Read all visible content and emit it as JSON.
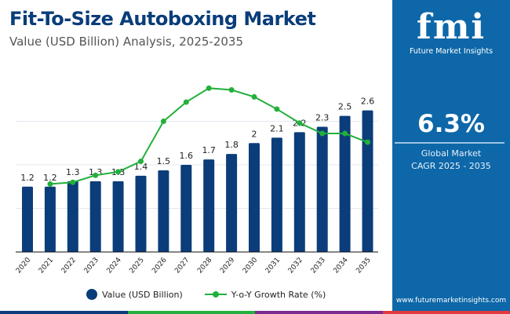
{
  "header": {
    "title": "Fit-To-Size Autoboxing Market",
    "subtitle": "Value (USD Billion) Analysis, 2025-2035"
  },
  "side": {
    "logo_text": "fmi",
    "brand": "Future Market Insights",
    "cagr": "6.3%",
    "label1": "Global Market",
    "label2": "CAGR 2025 - 2035",
    "url": "www.futuremarketinsights.com"
  },
  "legend": {
    "bar": "Value (USD Billion)",
    "line": "Y-o-Y Growth Rate (%)"
  },
  "colors": {
    "bar": "#0b3d7a",
    "line": "#22b03c",
    "panel": "#0d67a8"
  },
  "chart_data": {
    "type": "bar+line",
    "categories": [
      "2020",
      "2021",
      "2022",
      "2023",
      "2024",
      "2025",
      "2026",
      "2027",
      "2028",
      "2029",
      "2030",
      "2031",
      "2032",
      "2033",
      "2034",
      "2035"
    ],
    "series": [
      {
        "name": "Value (USD Billion)",
        "type": "bar",
        "values": [
          1.2,
          1.2,
          1.3,
          1.3,
          1.3,
          1.4,
          1.5,
          1.6,
          1.7,
          1.8,
          2,
          2.1,
          2.2,
          2.3,
          2.5,
          2.6
        ],
        "labels": [
          "1.2",
          "1.2",
          "1.3",
          "1.3",
          "1.3",
          "1.4",
          "1.5",
          "1.6",
          "1.7",
          "1.8",
          "2",
          "2.1",
          "2.2",
          "2.3",
          "2.5",
          "2.6"
        ]
      },
      {
        "name": "Y-o-Y Growth Rate (%)",
        "type": "line",
        "values": [
          null,
          3.9,
          4.0,
          4.4,
          4.6,
          5.2,
          7.5,
          8.6,
          9.4,
          9.3,
          8.9,
          8.2,
          7.4,
          6.8,
          6.8,
          6.3
        ]
      }
    ],
    "ylim": [
      0,
      3.2
    ],
    "y2lim": [
      0,
      10
    ],
    "grid": true,
    "legend": "bottom"
  }
}
